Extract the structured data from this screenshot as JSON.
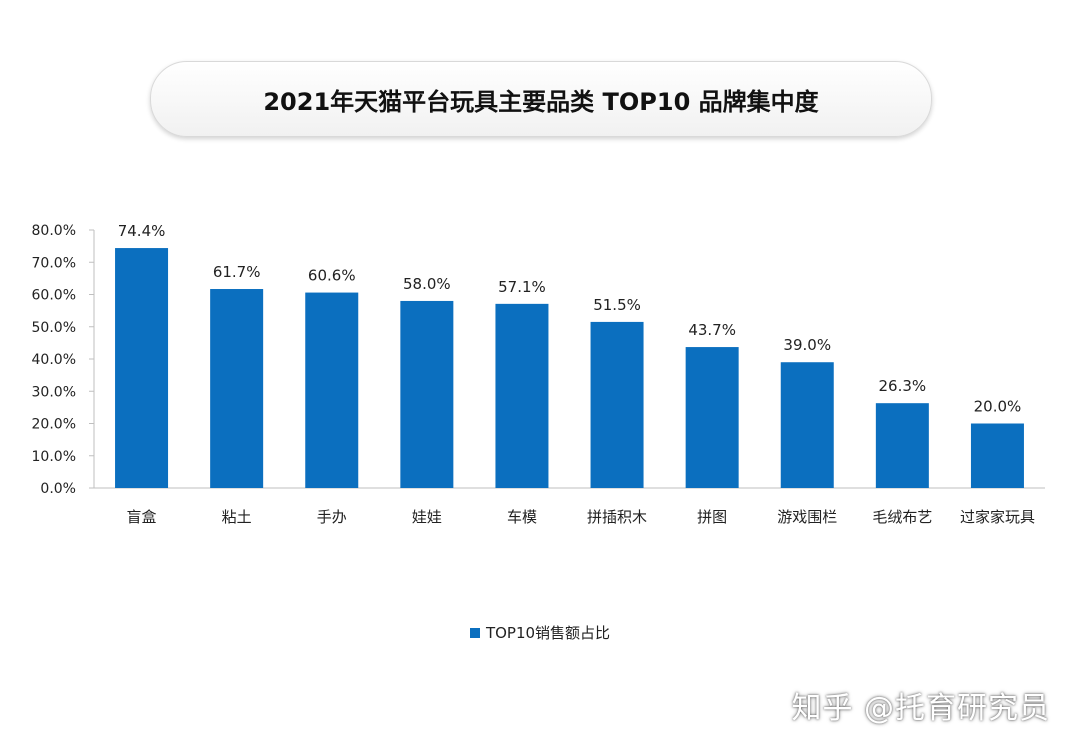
{
  "title": "2021年天猫平台玩具主要品类 TOP10 品牌集中度",
  "colors": {
    "bar": "#0b6fbf",
    "axis": "#bfbfbf"
  },
  "watermark": "知乎 @托育研究员",
  "chart_data": {
    "type": "bar",
    "title": "2021年天猫平台玩具主要品类 TOP10 品牌集中度",
    "categories": [
      "盲盒",
      "粘土",
      "手办",
      "娃娃",
      "车模",
      "拼插积木",
      "拼图",
      "游戏围栏",
      "毛绒布艺",
      "过家家玩具"
    ],
    "series": [
      {
        "name": "TOP10销售额占比",
        "values": [
          74.4,
          61.7,
          60.6,
          58.0,
          57.1,
          51.5,
          43.7,
          39.0,
          26.3,
          20.0
        ]
      }
    ],
    "value_labels": [
      "74.4%",
      "61.7%",
      "60.6%",
      "58.0%",
      "57.1%",
      "51.5%",
      "43.7%",
      "39.0%",
      "26.3%",
      "20.0%"
    ],
    "y_ticks": [
      0,
      10,
      20,
      30,
      40,
      50,
      60,
      70,
      80
    ],
    "y_tick_labels": [
      "0.0%",
      "10.0%",
      "20.0%",
      "30.0%",
      "40.0%",
      "50.0%",
      "60.0%",
      "70.0%",
      "80.0%"
    ],
    "ylim": [
      0,
      80
    ],
    "xlabel": "",
    "ylabel": "",
    "grid": false,
    "legend_position": "bottom"
  }
}
